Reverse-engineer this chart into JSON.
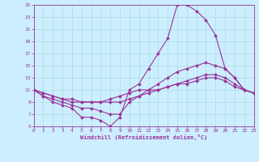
{
  "xlabel": "Windchill (Refroidissement éolien,°C)",
  "bg_color": "#cceeff",
  "grid_color": "#aadddd",
  "line_color": "#993399",
  "xlim": [
    0,
    23
  ],
  "ylim": [
    5,
    25
  ],
  "yticks": [
    5,
    7,
    9,
    11,
    13,
    15,
    17,
    19,
    21,
    23,
    25
  ],
  "xticks": [
    0,
    1,
    2,
    3,
    4,
    5,
    6,
    7,
    8,
    9,
    10,
    11,
    12,
    13,
    14,
    15,
    16,
    17,
    18,
    19,
    20,
    21,
    22,
    23
  ],
  "line1_x": [
    0,
    1,
    2,
    3,
    4,
    5,
    6,
    7,
    8,
    9,
    10,
    11,
    12,
    13,
    14,
    15,
    16,
    17,
    18,
    19,
    20,
    21,
    22,
    23
  ],
  "line1_y": [
    11,
    10,
    9,
    8.5,
    8,
    6.5,
    6.5,
    6,
    5,
    6.5,
    11,
    12,
    14.5,
    17,
    19.5,
    25,
    25,
    24,
    22.5,
    20,
    14.5,
    13,
    11,
    10.5
  ],
  "line2_x": [
    0,
    1,
    2,
    3,
    4,
    5,
    6,
    7,
    8,
    9,
    10,
    11,
    12,
    13,
    14,
    15,
    16,
    17,
    18,
    19,
    20,
    21,
    22,
    23
  ],
  "line2_y": [
    11,
    10,
    9.5,
    9,
    8.5,
    8,
    8,
    7.5,
    7,
    7,
    9,
    10,
    11,
    12,
    13,
    14,
    14.5,
    15,
    15.5,
    15,
    14.5,
    13,
    11,
    10.5
  ],
  "line3_x": [
    0,
    1,
    2,
    3,
    4,
    5,
    6,
    7,
    8,
    9,
    10,
    11,
    12,
    13,
    14,
    15,
    16,
    17,
    18,
    19,
    20,
    21,
    22,
    23
  ],
  "line3_y": [
    11,
    10.5,
    10,
    9.5,
    9,
    9,
    9,
    9,
    9,
    9,
    9.5,
    10,
    10.5,
    11,
    11.5,
    12,
    12.5,
    13,
    13.5,
    13.5,
    13,
    12,
    11,
    10.5
  ],
  "line4_x": [
    0,
    1,
    2,
    3,
    4,
    5,
    6,
    7,
    8,
    9,
    10,
    11,
    12,
    13,
    14,
    15,
    16,
    17,
    18,
    19,
    20,
    21,
    22,
    23
  ],
  "line4_y": [
    11,
    10.5,
    10,
    9.5,
    9.5,
    9,
    9,
    9,
    9.5,
    10,
    10.5,
    11,
    11,
    11,
    11.5,
    12,
    12,
    12.5,
    13,
    13,
    12.5,
    11.5,
    11,
    10.5
  ],
  "tick_fontsize": 4.5,
  "xlabel_fontsize": 5.0
}
